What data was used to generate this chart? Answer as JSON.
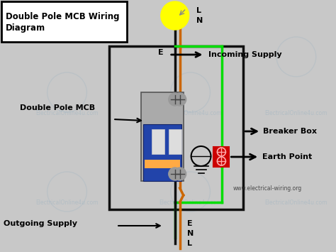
{
  "title": "Double Pole MCB Wiring\nDiagram",
  "background_color": "#c8c8c8",
  "website": "www.electrical-wiring.org",
  "label_double_pole_mcb": "Double Pole MCB",
  "label_incoming_supply": "Incoming Supply",
  "label_breaker_box": "Breaker Box",
  "label_earth_point": "Earth Point",
  "label_outgoing_supply": "Outgoing Supply",
  "wire_L_color": "#cc6600",
  "wire_N_color": "#111111",
  "wire_E_color": "#00dd00",
  "box_color": "#111111",
  "mcb_body_color": "#bbbbbb",
  "mcb_blue_color": "#2244aa",
  "title_box_color": "#ffffff",
  "label_L": "L",
  "label_N": "N",
  "label_E": "E",
  "watermark_color": "#6699bb",
  "watermark_alpha": 0.22
}
